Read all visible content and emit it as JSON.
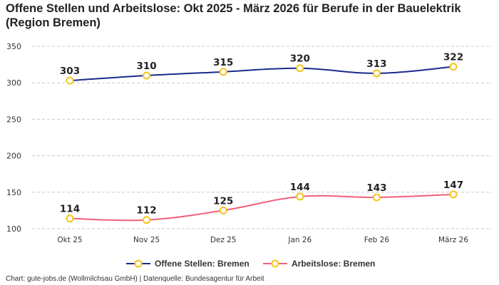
{
  "chart_data": {
    "type": "line",
    "title": "Offene Stellen und Arbeitslose: Okt 2025 - März 2026 für Berufe in der Bauelektrik (Region Bremen)",
    "categories": [
      "Okt 25",
      "Nov 25",
      "Dez 25",
      "Jan 26",
      "Feb 26",
      "März 26"
    ],
    "series": [
      {
        "name": "Offene Stellen: Bremen",
        "values": [
          303,
          310,
          315,
          320,
          313,
          322
        ],
        "color": "#1a2a8a"
      },
      {
        "name": "Arbeitslose: Bremen",
        "values": [
          114,
          112,
          125,
          144,
          143,
          147
        ],
        "color": "#f0607a"
      }
    ],
    "marker_color": "#f5c518",
    "ylim": [
      100,
      350
    ],
    "yticks": [
      100,
      150,
      200,
      250,
      300,
      350
    ],
    "grid": true,
    "legend": "bottom"
  },
  "footer": "Chart: gute-jobs.de (Wollmilchsau GmbH) | Datenquelle: Bundesagentur für Arbeit"
}
